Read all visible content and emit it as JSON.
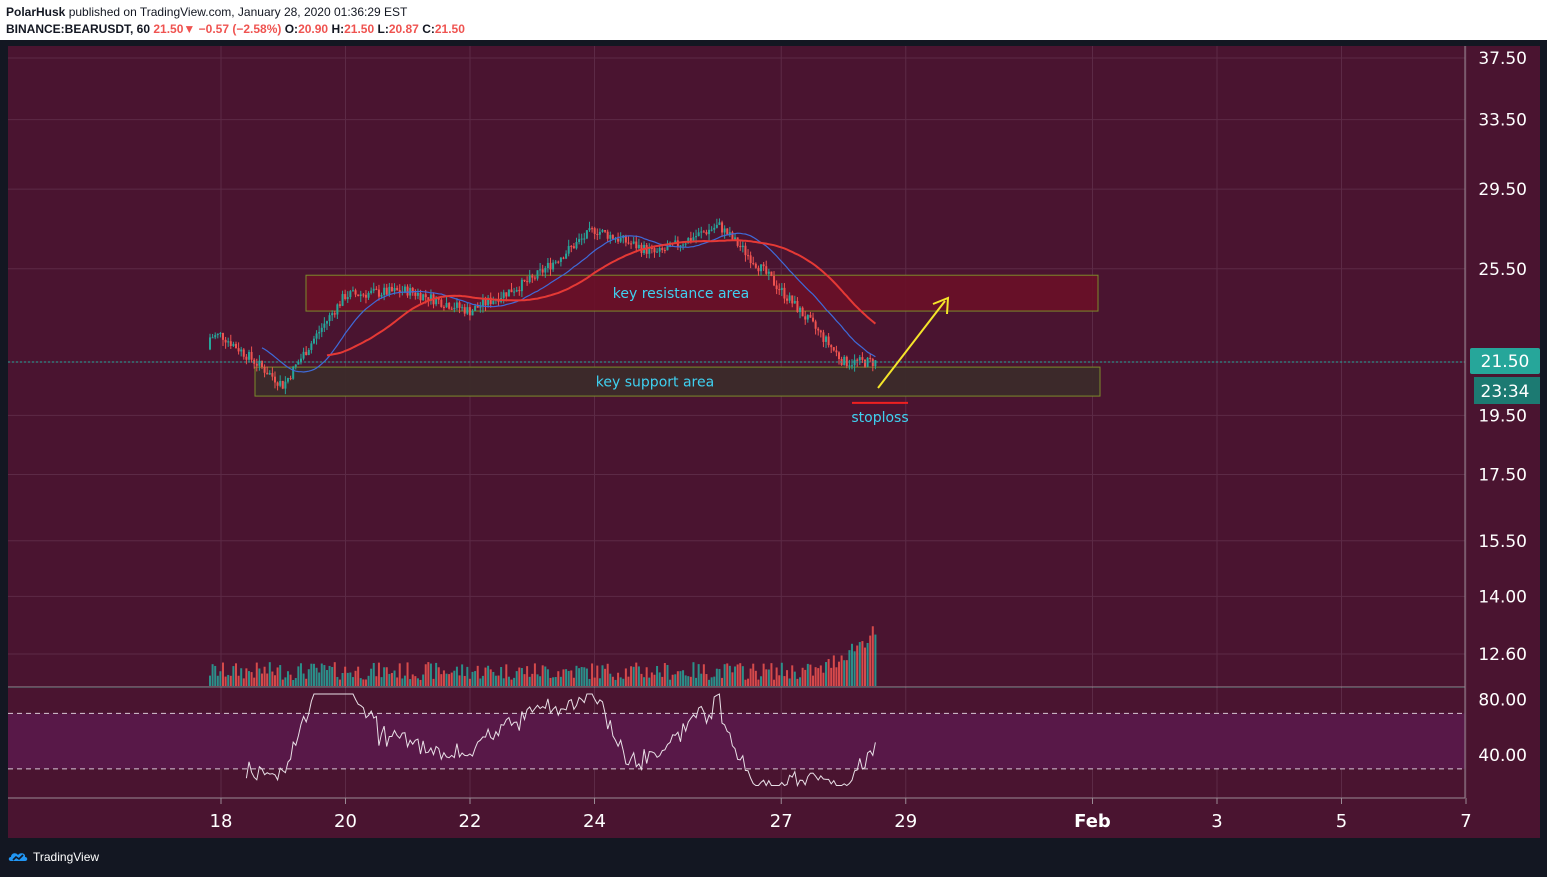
{
  "header": {
    "author": "PolarHusk",
    "published": "published on TradingView.com, January 28, 2020 01:36:29 EST",
    "symbol": "BINANCE:BEARUSDT, 60",
    "last": "21.50",
    "change": "−0.57 (−2.58%)",
    "open_label": "O:",
    "open": "20.90",
    "high_label": "H:",
    "high": "21.50",
    "low_label": "L:",
    "low": "20.87",
    "close_label": "C:",
    "close": "21.50"
  },
  "footer": {
    "brand": "TradingView"
  },
  "colors": {
    "background": "#4a1430",
    "rsi_band": "#581848",
    "grid": "#5c2a46",
    "up": "#26a69a",
    "down": "#ef5350",
    "ma_slow": "#e53935",
    "ma_fast": "#3f6ad8",
    "price_tag": "#26a69a",
    "arrow": "#f5e52a",
    "annotation_text": "#3fd0f0"
  },
  "chart_data": {
    "type": "candlestick",
    "price_axis": {
      "ticks": [
        37.5,
        33.5,
        29.5,
        25.5,
        21.5,
        19.5,
        17.5,
        15.5,
        14.0,
        12.6
      ],
      "scale": "log"
    },
    "current_price": "21.50",
    "countdown": "23:34",
    "time_axis": {
      "ticks": [
        "18",
        "20",
        "22",
        "24",
        "27",
        "29",
        "Feb",
        "3",
        "5",
        "7"
      ]
    },
    "candles_summary": [
      {
        "date": "17 Jan",
        "close": 22.0
      },
      {
        "date": "18 Jan",
        "close": 22.6
      },
      {
        "date": "19 Jan",
        "close": 20.6
      },
      {
        "date": "20 Jan",
        "close": 24.3
      },
      {
        "date": "21 Jan",
        "close": 24.5
      },
      {
        "date": "22 Jan",
        "close": 23.6
      },
      {
        "date": "23 Jan",
        "close": 25.0
      },
      {
        "date": "24 Jan",
        "close": 27.4
      },
      {
        "date": "25 Jan",
        "close": 26.2
      },
      {
        "date": "26 Jan",
        "close": 27.6
      },
      {
        "date": "27 Jan",
        "close": 24.5
      },
      {
        "date": "28 Jan",
        "close": 21.5
      }
    ],
    "annotations": {
      "resistance": {
        "label": "key resistance area",
        "top": 25.2,
        "bottom": 23.6
      },
      "support": {
        "label": "key support area",
        "top": 21.3,
        "bottom": 20.2
      },
      "stoploss": {
        "label": "stoploss",
        "price": 19.95
      }
    },
    "rsi": {
      "ticks": [
        "80.00",
        "40.00"
      ],
      "band_upper": 70,
      "band_lower": 30
    }
  }
}
